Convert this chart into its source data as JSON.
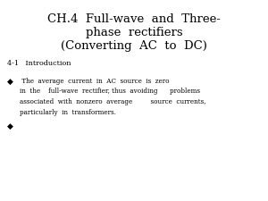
{
  "title_line1": "CH.4  Full-wave  and  Three-",
  "title_line2": "phase  rectifiers",
  "title_line3": "(Converting  AC  to  DC)",
  "section": "4-1   Introduction",
  "bullet1_lines": [
    " The  average  current  in  AC  source  is  zero",
    "in  the    full-wave  rectifier, thus  avoiding      problems",
    "associated  with  nonzero  average         source  currents,",
    "particularly  in  transformers."
  ],
  "bg_color": "#ffffff",
  "text_color": "#000000",
  "title_fontsize": 9.5,
  "section_fontsize": 5.8,
  "body_fontsize": 5.2,
  "bullet_fontsize": 6.5
}
